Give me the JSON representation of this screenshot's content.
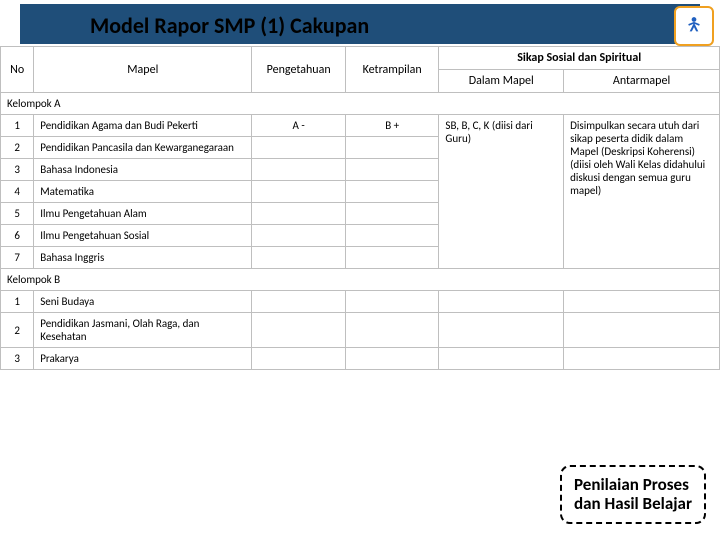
{
  "title": "Model Rapor SMP (1) Cakupan",
  "headers": {
    "no": "No",
    "mapel": "Mapel",
    "pengetahuan": "Pengetahuan",
    "ketrampilan": "Ketrampilan",
    "sikap": "Sikap Sosial dan Spiritual",
    "dalam": "Dalam Mapel",
    "antar": "Antarmapel"
  },
  "groupA": {
    "label": "Kelompok A",
    "rows": [
      {
        "no": "1",
        "mapel": "Pendidikan Agama dan Budi Pekerti",
        "peng": "A -",
        "ket": "B +"
      },
      {
        "no": "2",
        "mapel": "Pendidikan Pancasila dan Kewarganegaraan",
        "peng": "",
        "ket": ""
      },
      {
        "no": "3",
        "mapel": "Bahasa Indonesia",
        "peng": "",
        "ket": ""
      },
      {
        "no": "4",
        "mapel": "Matematika",
        "peng": "",
        "ket": ""
      },
      {
        "no": "5",
        "mapel": "Ilmu Pengetahuan Alam",
        "peng": "",
        "ket": ""
      },
      {
        "no": "6",
        "mapel": "Ilmu Pengetahuan Sosial",
        "peng": "",
        "ket": ""
      },
      {
        "no": "7",
        "mapel": "Bahasa Inggris",
        "peng": "",
        "ket": ""
      }
    ],
    "dalam": "SB, B, C, K (diisi dari Guru)",
    "antar": "Disimpulkan secara utuh dari sikap peserta didik dalam Mapel (Deskripsi Koherensi) (diisi oleh Wali Kelas didahului diskusi dengan semua guru mapel)"
  },
  "groupB": {
    "label": "Kelompok B",
    "rows": [
      {
        "no": "1",
        "mapel": "Seni Budaya"
      },
      {
        "no": "2",
        "mapel": "Pendidikan Jasmani, Olah Raga, dan Kesehatan"
      },
      {
        "no": "3",
        "mapel": "Prakarya"
      }
    ]
  },
  "callout": "Penilaian Proses dan Hasil Belajar",
  "colors": {
    "headerBar": "#1f4e79",
    "border": "#bfbfbf"
  }
}
